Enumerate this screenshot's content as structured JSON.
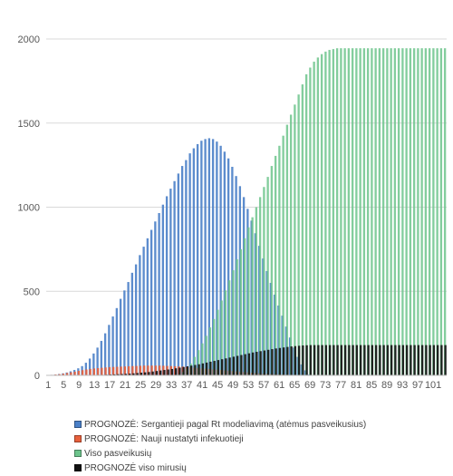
{
  "chart_data": {
    "type": "bar",
    "title": "",
    "xlabel": "",
    "ylabel": "",
    "ylim": [
      0,
      2000
    ],
    "y_ticks": [
      "0",
      "500",
      "1000",
      "1500",
      "2000"
    ],
    "x_range": [
      1,
      104
    ],
    "x_tick_labels": [
      "1",
      "5",
      "9",
      "13",
      "17",
      "21",
      "25",
      "29",
      "33",
      "37",
      "41",
      "45",
      "49",
      "53",
      "57",
      "61",
      "65",
      "69",
      "73",
      "77",
      "81",
      "85",
      "89",
      "93",
      "97",
      "101"
    ],
    "grid": true,
    "legend_position": "bottom",
    "series": [
      {
        "name": "PROGNOZĖ: Sergantieji pagal Rt modeliavimą (atėmus pasveikusius)",
        "color": "#4a80c8",
        "x": [
          1,
          2,
          3,
          4,
          5,
          6,
          7,
          8,
          9,
          10,
          11,
          12,
          13,
          14,
          15,
          16,
          17,
          18,
          19,
          20,
          21,
          22,
          23,
          24,
          25,
          26,
          27,
          28,
          29,
          30,
          31,
          32,
          33,
          34,
          35,
          36,
          37,
          38,
          39,
          40,
          41,
          42,
          43,
          44,
          45,
          46,
          47,
          48,
          49,
          50,
          51,
          52,
          53,
          54,
          55,
          56,
          57,
          58,
          59,
          60,
          61,
          62,
          63,
          64,
          65,
          66,
          67,
          68,
          69
        ],
        "values": [
          2,
          3,
          5,
          8,
          12,
          17,
          24,
          32,
          42,
          55,
          75,
          100,
          130,
          165,
          205,
          250,
          300,
          350,
          400,
          455,
          505,
          555,
          610,
          660,
          715,
          765,
          815,
          865,
          915,
          965,
          1015,
          1065,
          1110,
          1155,
          1200,
          1245,
          1280,
          1320,
          1350,
          1375,
          1395,
          1405,
          1410,
          1405,
          1390,
          1365,
          1330,
          1290,
          1240,
          1185,
          1125,
          1060,
          990,
          920,
          845,
          770,
          695,
          620,
          550,
          480,
          415,
          355,
          290,
          225,
          165,
          110,
          65,
          30,
          5
        ]
      },
      {
        "name": "PROGNOZĖ: Nauji nustatyti infekuotieji",
        "color": "#e8603c",
        "x": [
          1,
          2,
          3,
          4,
          5,
          6,
          7,
          8,
          9,
          10,
          11,
          12,
          13,
          14,
          15,
          16,
          17,
          18,
          19,
          20,
          21,
          22,
          23,
          24,
          25,
          26,
          27,
          28,
          29,
          30,
          31,
          32,
          33,
          34,
          35,
          36,
          37,
          38,
          39,
          40,
          41,
          42,
          43,
          44,
          45,
          46,
          47,
          48,
          49,
          50,
          51,
          52,
          53,
          54,
          55,
          56,
          57,
          58,
          59,
          60,
          61,
          62,
          63,
          64,
          65,
          66,
          67,
          68,
          69
        ],
        "values": [
          2,
          3,
          5,
          7,
          10,
          14,
          18,
          22,
          27,
          31,
          35,
          38,
          41,
          43,
          45,
          47,
          49,
          50,
          51,
          52,
          53,
          54,
          55,
          56,
          57,
          58,
          58,
          58,
          58,
          58,
          57,
          56,
          55,
          54,
          53,
          52,
          50,
          48,
          46,
          44,
          42,
          40,
          38,
          36,
          34,
          32,
          30,
          28,
          26,
          24,
          22,
          20,
          18,
          16,
          14,
          12,
          10,
          9,
          8,
          7,
          6,
          5,
          4,
          3,
          3,
          2,
          2,
          1,
          1
        ]
      },
      {
        "name": "Viso pasveikusių",
        "color": "#6dc48c",
        "x": [
          1,
          2,
          3,
          4,
          5,
          6,
          7,
          8,
          9,
          10,
          11,
          12,
          13,
          14,
          15,
          16,
          17,
          18,
          19,
          20,
          21,
          22,
          23,
          24,
          25,
          26,
          27,
          28,
          29,
          30,
          31,
          32,
          33,
          34,
          35,
          36,
          37,
          38,
          39,
          40,
          41,
          42,
          43,
          44,
          45,
          46,
          47,
          48,
          49,
          50,
          51,
          52,
          53,
          54,
          55,
          56,
          57,
          58,
          59,
          60,
          61,
          62,
          63,
          64,
          65,
          66,
          67,
          68,
          69,
          70,
          71,
          72,
          73,
          74,
          75,
          76,
          77,
          78,
          79,
          80,
          81,
          82,
          83,
          84,
          85,
          86,
          87,
          88,
          89,
          90,
          91,
          92,
          93,
          94,
          95,
          96,
          97,
          98,
          99,
          100,
          101,
          102,
          103,
          104
        ],
        "values": [
          0,
          0,
          0,
          0,
          0,
          0,
          0,
          0,
          0,
          0,
          0,
          0,
          0,
          0,
          0,
          0,
          0,
          0,
          0,
          0,
          0,
          0,
          0,
          0,
          0,
          0,
          0,
          0,
          0,
          0,
          0,
          0,
          0,
          2,
          8,
          20,
          40,
          70,
          110,
          150,
          190,
          235,
          285,
          335,
          390,
          445,
          505,
          565,
          625,
          690,
          750,
          815,
          880,
          940,
          1000,
          1060,
          1120,
          1180,
          1245,
          1305,
          1365,
          1425,
          1490,
          1550,
          1610,
          1670,
          1730,
          1790,
          1830,
          1865,
          1890,
          1910,
          1925,
          1935,
          1940,
          1945,
          1945,
          1945,
          1945,
          1945,
          1945,
          1945,
          1945,
          1945,
          1945,
          1945,
          1945,
          1945,
          1945,
          1945,
          1945,
          1945,
          1945,
          1945,
          1945,
          1945,
          1945,
          1945,
          1945,
          1945,
          1945,
          1945,
          1945,
          1945
        ]
      },
      {
        "name": "PROGNOZĖ viso mirusių",
        "color": "#111111",
        "x": [
          1,
          2,
          3,
          4,
          5,
          6,
          7,
          8,
          9,
          10,
          11,
          12,
          13,
          14,
          15,
          16,
          17,
          18,
          19,
          20,
          21,
          22,
          23,
          24,
          25,
          26,
          27,
          28,
          29,
          30,
          31,
          32,
          33,
          34,
          35,
          36,
          37,
          38,
          39,
          40,
          41,
          42,
          43,
          44,
          45,
          46,
          47,
          48,
          49,
          50,
          51,
          52,
          53,
          54,
          55,
          56,
          57,
          58,
          59,
          60,
          61,
          62,
          63,
          64,
          65,
          66,
          67,
          68,
          69,
          70,
          71,
          72,
          73,
          74,
          75,
          76,
          77,
          78,
          79,
          80,
          81,
          82,
          83,
          84,
          85,
          86,
          87,
          88,
          89,
          90,
          91,
          92,
          93,
          94,
          95,
          96,
          97,
          98,
          99,
          100,
          101,
          102,
          103,
          104
        ],
        "values": [
          0,
          0,
          0,
          0,
          0,
          0,
          0,
          0,
          1,
          1,
          1,
          2,
          2,
          3,
          3,
          4,
          5,
          6,
          7,
          8,
          9,
          10,
          12,
          14,
          16,
          18,
          20,
          23,
          26,
          29,
          32,
          35,
          38,
          42,
          46,
          50,
          54,
          58,
          62,
          66,
          71,
          76,
          81,
          86,
          91,
          96,
          101,
          106,
          111,
          116,
          121,
          126,
          131,
          136,
          140,
          144,
          148,
          152,
          156,
          160,
          163,
          166,
          169,
          172,
          174,
          176,
          178,
          179,
          180,
          180,
          180,
          180,
          180,
          180,
          180,
          180,
          180,
          180,
          180,
          180,
          180,
          180,
          180,
          180,
          180,
          180,
          180,
          180,
          180,
          180,
          180,
          180,
          180,
          180,
          180,
          180,
          180,
          180,
          180,
          180,
          180,
          180,
          180,
          180
        ]
      }
    ]
  }
}
